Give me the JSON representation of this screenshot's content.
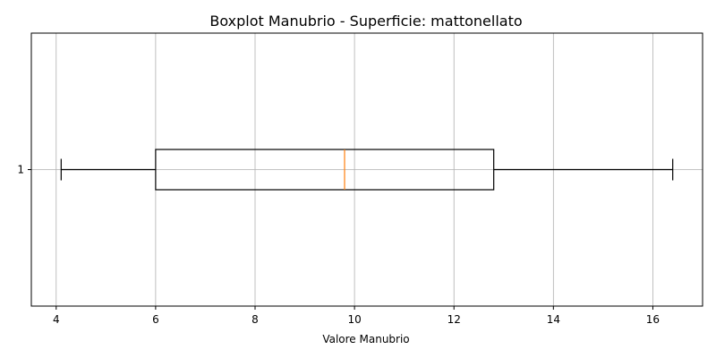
{
  "chart_data": {
    "type": "boxplot",
    "title": "Boxplot Manubrio - Superficie: mattonellato",
    "xlabel": "Valore Manubrio",
    "ylabel": "",
    "orientation": "horizontal",
    "xlim": [
      3.5,
      17.0
    ],
    "xticks": [
      4,
      6,
      8,
      10,
      12,
      14,
      16
    ],
    "xtick_labels": [
      "4",
      "6",
      "8",
      "10",
      "12",
      "14",
      "16"
    ],
    "ytick_labels": [
      "1"
    ],
    "grid": true,
    "boxes": [
      {
        "label": "1",
        "whisker_low": 4.1,
        "q1": 6.0,
        "median": 9.8,
        "q3": 12.8,
        "whisker_high": 16.4
      }
    ],
    "colors": {
      "box": "#000000",
      "median": "#ff7f0e",
      "grid": "#b0b0b0"
    }
  }
}
